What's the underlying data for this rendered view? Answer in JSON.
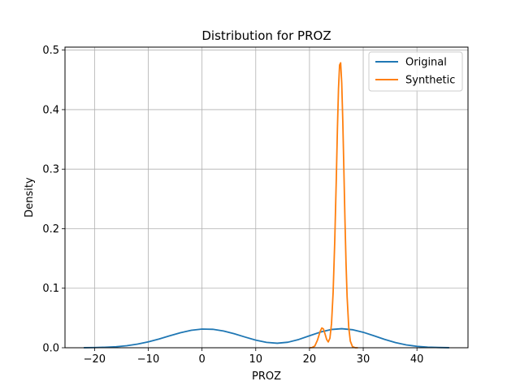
{
  "chart_data": {
    "type": "line",
    "title": "Distribution for PROZ",
    "xlabel": "PROZ",
    "ylabel": "Density",
    "xlim": [
      -25.5,
      49.5
    ],
    "ylim": [
      0,
      0.505
    ],
    "xticks": [
      -20,
      -10,
      0,
      10,
      20,
      30,
      40
    ],
    "xtick_labels": [
      "−20",
      "−10",
      "0",
      "10",
      "20",
      "30",
      "40"
    ],
    "yticks": [
      0.0,
      0.1,
      0.2,
      0.3,
      0.4,
      0.5
    ],
    "ytick_labels": [
      "0.0",
      "0.1",
      "0.2",
      "0.3",
      "0.4",
      "0.5"
    ],
    "grid": true,
    "legend_position": "top-right",
    "series": [
      {
        "name": "Original",
        "color": "#1f77b4",
        "x": [
          -22,
          -20,
          -18,
          -16,
          -14,
          -12,
          -10,
          -8,
          -6,
          -4,
          -2,
          0,
          2,
          4,
          6,
          8,
          10,
          12,
          14,
          16,
          18,
          20,
          22,
          24,
          26,
          28,
          30,
          32,
          34,
          36,
          38,
          40,
          42,
          44,
          46
        ],
        "y": [
          0.0001,
          0.0003,
          0.0008,
          0.0017,
          0.0034,
          0.0061,
          0.0099,
          0.0147,
          0.0201,
          0.0253,
          0.0293,
          0.0314,
          0.031,
          0.0282,
          0.0235,
          0.018,
          0.0128,
          0.009,
          0.0076,
          0.0093,
          0.0139,
          0.0201,
          0.0262,
          0.0306,
          0.032,
          0.0303,
          0.026,
          0.0201,
          0.014,
          0.0087,
          0.0048,
          0.0024,
          0.001,
          0.0004,
          0.0001
        ]
      },
      {
        "name": "Synthetic",
        "color": "#ff7f0e",
        "x": [
          20.0,
          20.5,
          21.0,
          21.5,
          22.0,
          22.3,
          22.6,
          22.9,
          23.2,
          23.5,
          23.8,
          24.1,
          24.4,
          24.7,
          25.0,
          25.2,
          25.4,
          25.6,
          25.8,
          26.0,
          26.2,
          26.4,
          26.6,
          26.8,
          27.0,
          27.3,
          27.6,
          28.0,
          28.5,
          29.0
        ],
        "y": [
          0.0,
          0.0004,
          0.003,
          0.0132,
          0.0276,
          0.0332,
          0.0316,
          0.023,
          0.0138,
          0.0098,
          0.016,
          0.0405,
          0.0931,
          0.1786,
          0.287,
          0.3681,
          0.4353,
          0.4749,
          0.4786,
          0.4447,
          0.3804,
          0.2989,
          0.2155,
          0.1424,
          0.0861,
          0.035,
          0.0111,
          0.0019,
          0.0001,
          0.0
        ]
      }
    ]
  }
}
